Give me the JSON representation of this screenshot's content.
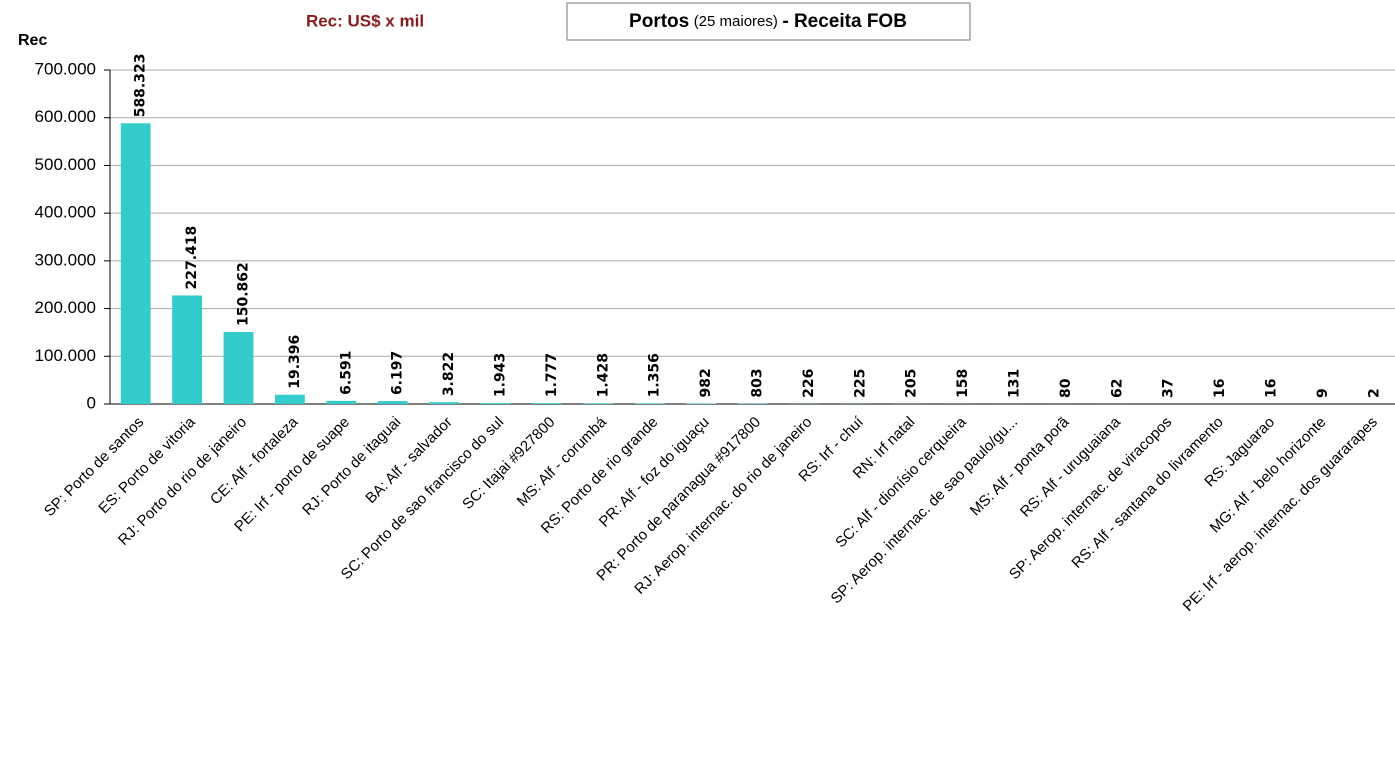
{
  "chart_data": {
    "type": "bar",
    "title": {
      "main": "Portos",
      "note": "(25 maiores)",
      "rest": "- Receita FOB"
    },
    "subtitle": "Rec: US$ x mil",
    "y_label": "Rec",
    "color": "#33cccc",
    "categories": [
      "SP: Porto de santos",
      "ES: Porto de vitoria",
      "RJ: Porto do rio de janeiro",
      "CE: Alf - fortaleza",
      "PE: Irf - porto de suape",
      "RJ: Porto de itaguai",
      "BA: Alf - salvador",
      "SC: Porto de sao francisco do sul",
      "SC: Itajai #927800",
      "MS: Alf - corumbá",
      "RS: Porto de rio grande",
      "PR: Alf - foz do iguaçu",
      "PR: Porto de paranagua #917800",
      "RJ: Aerop. internac. do rio de janeiro",
      "RS: Irf - chuí",
      "RN: Irf natal",
      "SC: Alf - dionísio cerqueira",
      "SP: Aerop. internac. de sao paulo/gu...",
      "MS: Alf - ponta porã",
      "RS: Alf - uruguaiana",
      "SP: Aerop. internac. de viracopos",
      "RS: Alf - santana do livramento",
      "RS: Jaguarao",
      "MG: Alf - belo horizonte",
      "PE: Irf - aerop. internac. dos guararapes"
    ],
    "values": [
      588323,
      227418,
      150862,
      19396,
      6591,
      6197,
      3822,
      1943,
      1777,
      1428,
      1356,
      982,
      803,
      226,
      225,
      205,
      158,
      131,
      80,
      62,
      37,
      16,
      16,
      9,
      2
    ],
    "value_labels": [
      "588.323",
      "227.418",
      "150.862",
      "19.396",
      "6.591",
      "6.197",
      "3.822",
      "1.943",
      "1.777",
      "1.428",
      "1.356",
      "982",
      "803",
      "226",
      "225",
      "205",
      "158",
      "131",
      "80",
      "62",
      "37",
      "16",
      "16",
      "9",
      "2"
    ],
    "ylim": [
      0,
      700000
    ],
    "yticks": [
      0,
      {
        "value": 100000,
        "label": "100.000"
      },
      {
        "value": 200000,
        "label": "200.000"
      },
      {
        "value": 300000,
        "label": "300.000"
      },
      {
        "value": 400000,
        "label": "400.000"
      },
      {
        "value": 500000,
        "label": "500.000"
      },
      {
        "value": 600000,
        "label": "600.000"
      },
      {
        "value": 700000,
        "label": "700.000"
      }
    ],
    "grid": true
  }
}
